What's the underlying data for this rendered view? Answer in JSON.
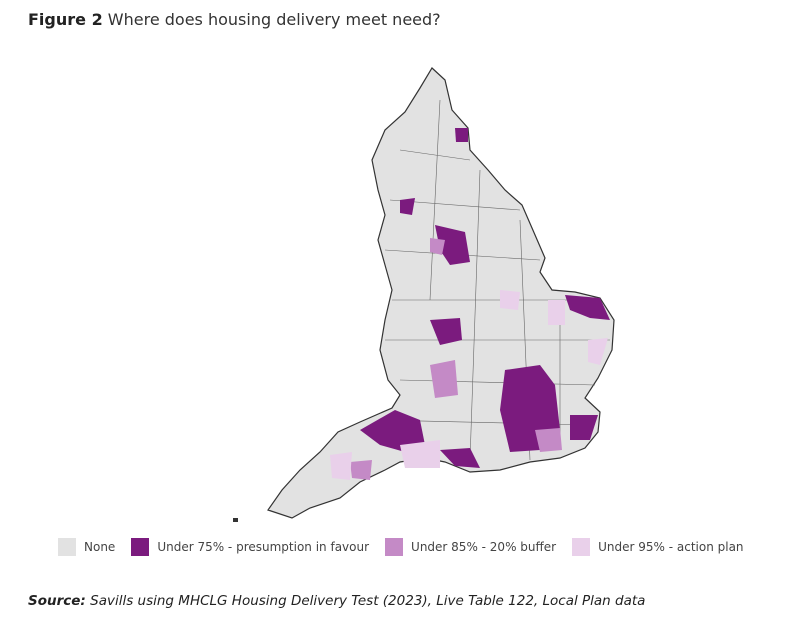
{
  "header": {
    "figure": "Figure 2",
    "title": "Where does housing delivery meet need?"
  },
  "legend": [
    {
      "label": "None",
      "color": "#e2e2e2"
    },
    {
      "label": "Under 75% - presumption in favour",
      "color": "#7b1b7e"
    },
    {
      "label": "Under 85% - 20% buffer",
      "color": "#c48ac6"
    },
    {
      "label": "Under 95% - action plan",
      "color": "#e9d0ea"
    }
  ],
  "source": {
    "label": "Source:",
    "text": "Savills using MHCLG Housing Delivery Test (2023), Live Table 122, Local Plan data"
  }
}
